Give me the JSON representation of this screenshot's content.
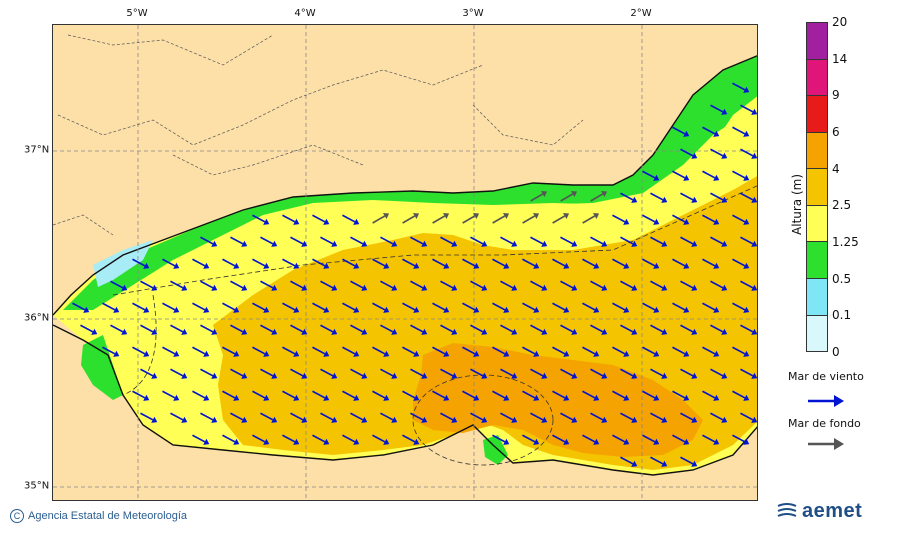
{
  "map": {
    "lon_ticks": [
      "5°W",
      "4°W",
      "3°W",
      "2°W"
    ],
    "lat_ticks": [
      "37°N",
      "36°N",
      "35°N"
    ]
  },
  "legend": {
    "title": "Altura (m)",
    "ticks": [
      "20",
      "14",
      "9",
      "6",
      "4",
      "2.5",
      "1.25",
      "0.5",
      "0.1",
      "0"
    ],
    "colors": [
      "#a020a0",
      "#e0157a",
      "#e81b1b",
      "#f5a300",
      "#f5c400",
      "#ffff55",
      "#2ee02e",
      "#7fe6f5",
      "#d8f8fb"
    ],
    "wind_label": "Mar de viento",
    "swell_label": "Mar de fondo",
    "wind_color": "#0014d2",
    "swell_color": "#555555"
  },
  "footer": {
    "credit": "Agencia Estatal de Meteorología",
    "copyright_symbol": "C",
    "logo_text": "aemet"
  },
  "palette": {
    "land": "#fddfa8",
    "sea_light": "#ffff55",
    "sea_mid": "#f5c400",
    "sea_high": "#f5a300",
    "sea_green": "#2ee02e",
    "sea_cyan": "#a8ecf5"
  }
}
